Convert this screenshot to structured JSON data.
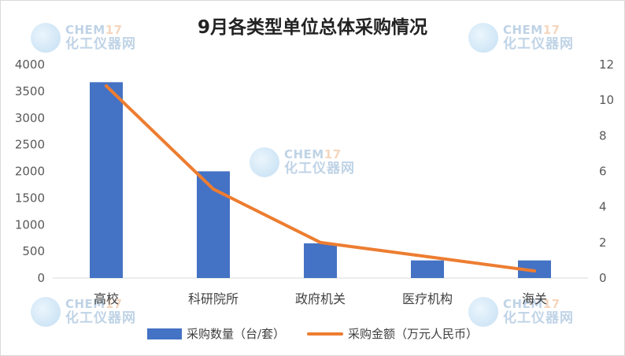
{
  "chart_data": {
    "type": "bar",
    "title": "9月各类型单位总体采购情况",
    "categories": [
      "高校",
      "科研院所",
      "政府机关",
      "医疗机构",
      "海关"
    ],
    "series": [
      {
        "name": "采购数量（台/套）",
        "type": "bar",
        "axis": "left",
        "color": "#4472C4",
        "values": [
          3670,
          2000,
          650,
          330,
          330
        ]
      },
      {
        "name": "采购金额（万元人民币）",
        "type": "line",
        "axis": "right",
        "color": "#ED7D31",
        "values": [
          10.8,
          5.0,
          2.0,
          1.2,
          0.4
        ]
      }
    ],
    "left_axis": {
      "ylim": [
        0,
        4000
      ],
      "ticks": [
        "0",
        "500",
        "1000",
        "1500",
        "2000",
        "2500",
        "3000",
        "3500",
        "4000"
      ]
    },
    "right_axis": {
      "ylim": [
        0,
        12
      ],
      "ticks": [
        "0",
        "2",
        "4",
        "6",
        "8",
        "10",
        "12"
      ]
    },
    "legend_position": "bottom",
    "grid": false
  },
  "watermark": {
    "top_text": "CHEM",
    "top_accent": "17",
    "bottom_text": "化工仪器网"
  }
}
